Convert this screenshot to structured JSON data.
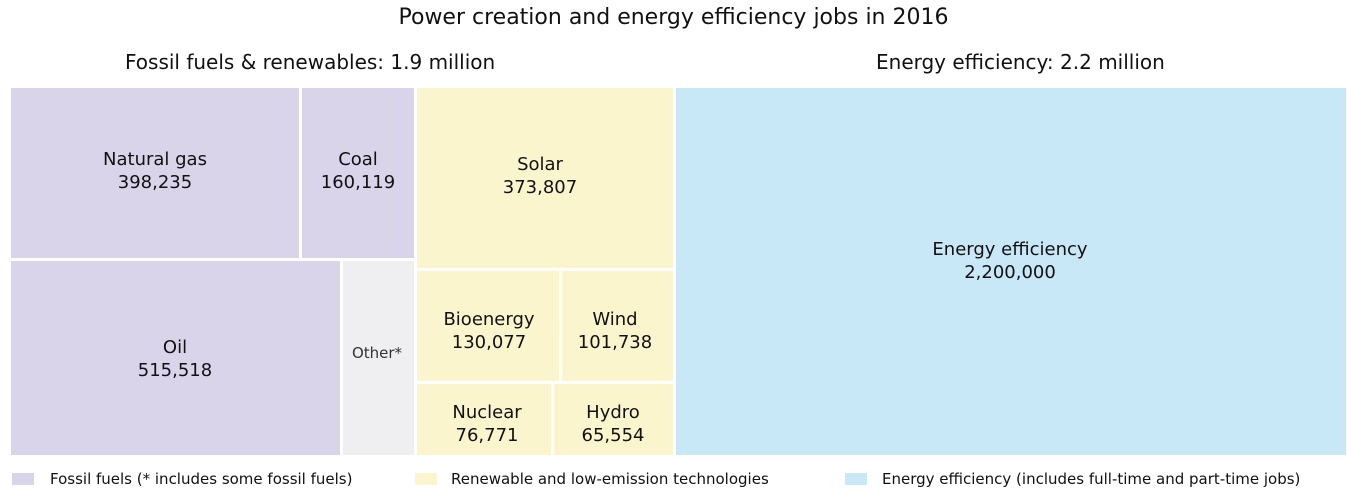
{
  "chart_data": {
    "type": "treemap",
    "title": "Power creation and energy efficiency jobs in 2016",
    "groups": [
      {
        "title": "Fossil fuels & renewables: 1.9 million"
      },
      {
        "title": "Energy efficiency: 2.2 million"
      }
    ],
    "tiles": [
      {
        "label": "Natural gas",
        "value": 398235,
        "value_label": "398,235",
        "category": "fossil"
      },
      {
        "label": "Coal",
        "value": 160119,
        "value_label": "160,119",
        "category": "fossil"
      },
      {
        "label": "Oil",
        "value": 515518,
        "value_label": "515,518",
        "category": "fossil"
      },
      {
        "label": "Other*",
        "value_label": "",
        "category": "other"
      },
      {
        "label": "Solar",
        "value": 373807,
        "value_label": "373,807",
        "category": "renewable"
      },
      {
        "label": "Bioenergy",
        "value": 130077,
        "value_label": "130,077",
        "category": "renewable"
      },
      {
        "label": "Wind",
        "value": 101738,
        "value_label": "101,738",
        "category": "renewable"
      },
      {
        "label": "Nuclear",
        "value": 76771,
        "value_label": "76,771",
        "category": "renewable"
      },
      {
        "label": "Hydro",
        "value": 65554,
        "value_label": "65,554",
        "category": "renewable"
      },
      {
        "label": "Energy efficiency",
        "value": 2200000,
        "value_label": "2,200,000",
        "category": "efficiency"
      }
    ],
    "legend": [
      {
        "label": "Fossil fuels (* includes some fossil fuels)",
        "color": "#d9d4ea"
      },
      {
        "label": "Renewable and low-emission technologies",
        "color": "#fbf5ce"
      },
      {
        "label": "Energy efficiency (includes full-time and part-time jobs)",
        "color": "#c8e7f7"
      }
    ],
    "colors": {
      "fossil": "#d9d4ea",
      "other": "#efeff2",
      "renewable": "#fbf5ce",
      "efficiency": "#c8e7f7"
    }
  }
}
